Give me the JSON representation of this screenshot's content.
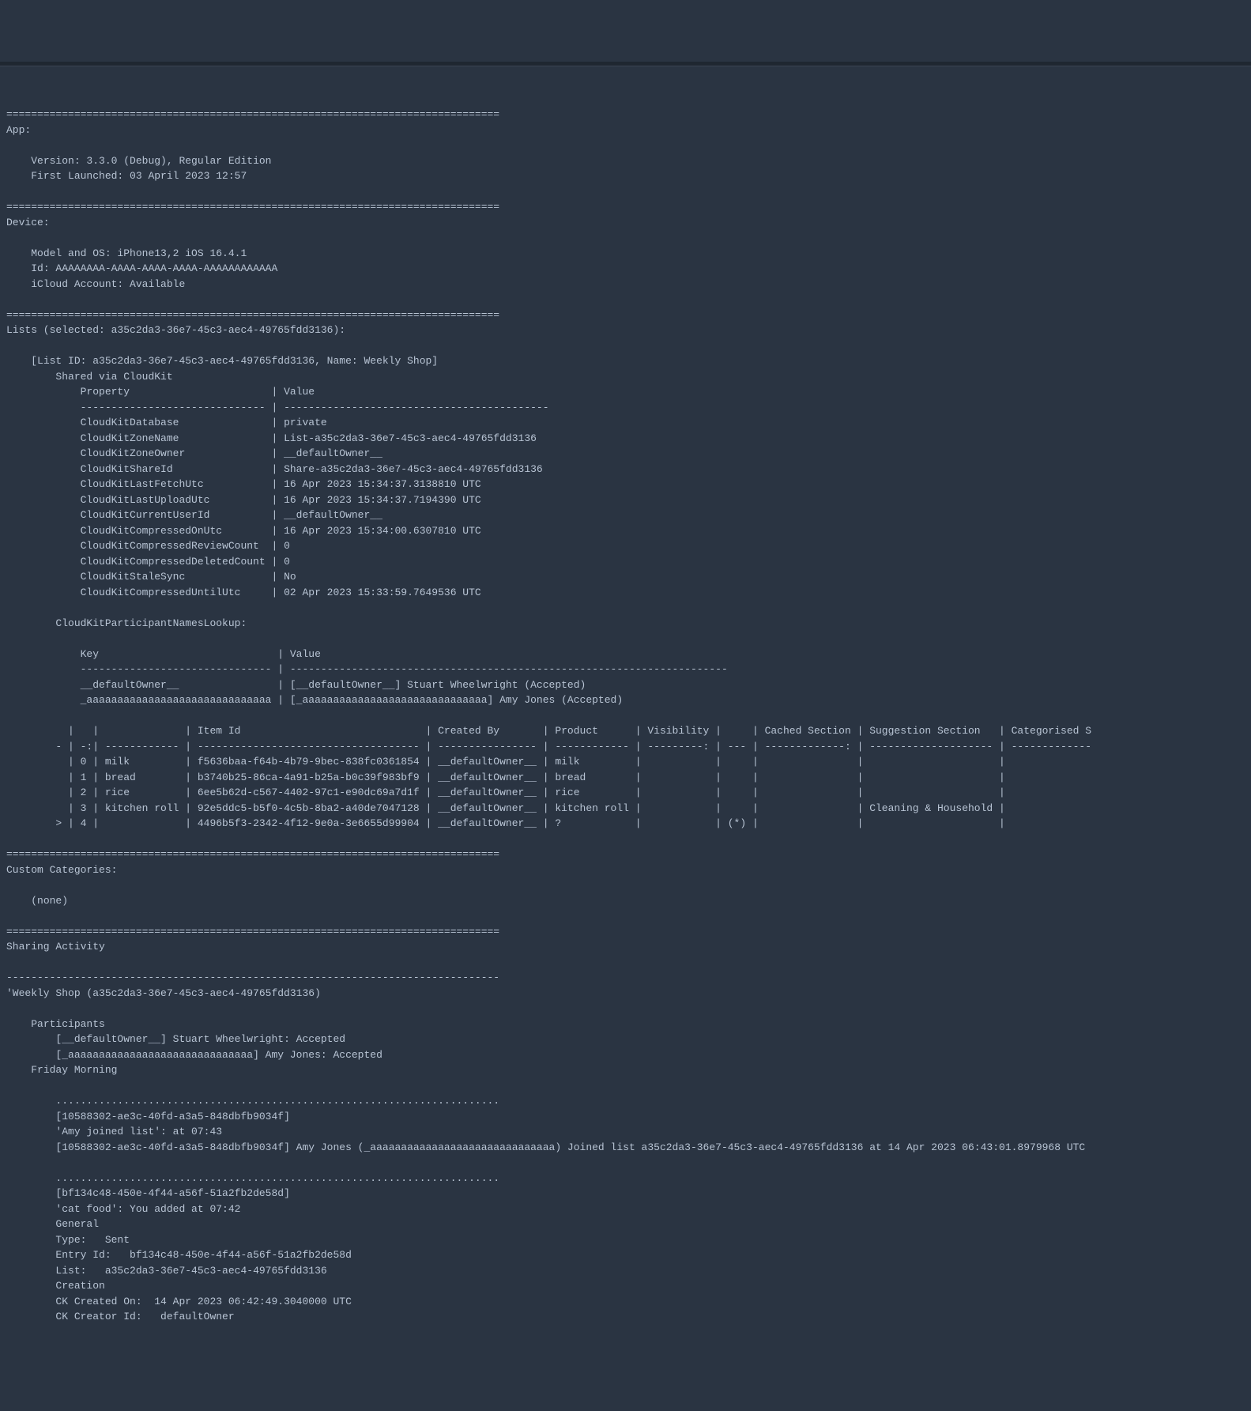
{
  "colors": {
    "background": "#2a3442",
    "text": "#b8c4d4",
    "dots": "#4a5568",
    "topbar": "#1f2731"
  },
  "sep": "================================================================================",
  "dashline": "--------------------------------------------------------------------------------",
  "tilde": "~~~~~~~~~~~~~~~~~~~~~~~~~~~~~~~~~~~~~~~~~~~~~~~~~~~~~~~~~~~~~~~~~~~~~~~~~~~~~~~~",
  "app": {
    "header": "App:",
    "version": "Version: 3.3.0 (Debug), Regular Edition",
    "launched": "First Launched: 03 April 2023 12:57"
  },
  "device": {
    "header": "Device:",
    "model": "Model and OS: iPhone13,2 iOS 16.4.1",
    "id": "Id: AAAAAAAA-AAAA-AAAA-AAAA-AAAAAAAAAAAA",
    "icloud": "iCloud Account: Available"
  },
  "lists": {
    "header": "Lists (selected: a35c2da3-36e7-45c3-aec4-49765fdd3136):",
    "list_id": "[List ID: a35c2da3-36e7-45c3-aec4-49765fdd3136, Name: Weekly Shop]",
    "shared": "Shared via CloudKit",
    "prop_header": "Property                       | Value",
    "prop_sep": "------------------------------ | -------------------------------------------",
    "props": [
      "CloudKitDatabase               | private",
      "CloudKitZoneName               | List-a35c2da3-36e7-45c3-aec4-49765fdd3136",
      "CloudKitZoneOwner              | __defaultOwner__",
      "CloudKitShareId                | Share-a35c2da3-36e7-45c3-aec4-49765fdd3136",
      "CloudKitLastFetchUtc           | 16 Apr 2023 15:34:37.3138810 UTC",
      "CloudKitLastUploadUtc          | 16 Apr 2023 15:34:37.7194390 UTC",
      "CloudKitCurrentUserId          | __defaultOwner__",
      "CloudKitCompressedOnUtc        | 16 Apr 2023 15:34:00.6307810 UTC",
      "CloudKitCompressedReviewCount  | 0",
      "CloudKitCompressedDeletedCount | 0",
      "CloudKitStaleSync              | No",
      "CloudKitCompressedUntilUtc     | 02 Apr 2023 15:33:59.7649536 UTC"
    ],
    "participants_header": "CloudKitParticipantNamesLookup:",
    "part_th": "Key                             | Value",
    "part_sep": "------------------------------- | -----------------------------------------------------------------------",
    "part_rows": [
      "__defaultOwner__                | [__defaultOwner__] Stuart Wheelwright (Accepted)",
      "_aaaaaaaaaaaaaaaaaaaaaaaaaaaaaa | [_aaaaaaaaaaaaaaaaaaaaaaaaaaaaaa] Amy Jones (Accepted)"
    ],
    "items_th": "  |   |              | Item Id                              | Created By       | Product      | Visibility |     | Cached Section | Suggestion Section   | Categorised S",
    "items_sep": "- | -:| ------------ | ------------------------------------ | ---------------- | ------------ | ---------: | --- | -------------: | -------------------- | -------------",
    "items": [
      "  | 0 | milk         | f5636baa-f64b-4b79-9bec-838fc0361854 | __defaultOwner__ | milk         |            |     |                |                      |",
      "  | 1 | bread        | b3740b25-86ca-4a91-b25a-b0c39f983bf9 | __defaultOwner__ | bread        |            |     |                |                      |",
      "  | 2 | rice         | 6ee5b62d-c567-4402-97c1-e90dc69a7d1f | __defaultOwner__ | rice         |            |     |                |                      |",
      "  | 3 | kitchen roll | 92e5ddc5-b5f0-4c5b-8ba2-a40de7047128 | __defaultOwner__ | kitchen roll |            |     |                | Cleaning & Household |",
      "> | 4 |              | 4496b5f3-2342-4f12-9e0a-3e6655d99904 | __defaultOwner__ | ?            |            | (*) |                |                      |"
    ]
  },
  "custom": {
    "header": "Custom Categories:",
    "none": "(none)"
  },
  "sharing": {
    "header": "Sharing Activity",
    "title": "'Weekly Shop (a35c2da3-36e7-45c3-aec4-49765fdd3136)",
    "participants_label": "Participants",
    "p1": "[__defaultOwner__] Stuart Wheelwright: Accepted",
    "p2": "[_aaaaaaaaaaaaaaaaaaaaaaaaaaaaaa] Amy Jones: Accepted",
    "friday": "Friday Morning",
    "stars1": "........................................................................",
    "evt1_id": "[10588302-ae3c-40fd-a3a5-848dbfb9034f]",
    "evt1_summary": "'Amy joined list': at 07:43",
    "evt1_detail": "[10588302-ae3c-40fd-a3a5-848dbfb9034f] Amy Jones (_aaaaaaaaaaaaaaaaaaaaaaaaaaaaaa) Joined list a35c2da3-36e7-45c3-aec4-49765fdd3136 at 14 Apr 2023 06:43:01.8979968 UTC",
    "stars2": "........................................................................",
    "evt2_id": "[bf134c48-450e-4f44-a56f-51a2fb2de58d]",
    "evt2_summary": "'cat food': You added at 07:42",
    "evt2_general": "General",
    "evt2_type": "Type:   Sent",
    "evt2_entry": "Entry Id:   bf134c48-450e-4f44-a56f-51a2fb2de58d",
    "evt2_list": "List:   a35c2da3-36e7-45c3-aec4-49765fdd3136",
    "evt2_creation": "Creation",
    "evt2_ck_created": "CK Created On:  14 Apr 2023 06:42:49.3040000 UTC",
    "evt2_ck_creator": "CK Creator Id:   defaultOwner"
  }
}
